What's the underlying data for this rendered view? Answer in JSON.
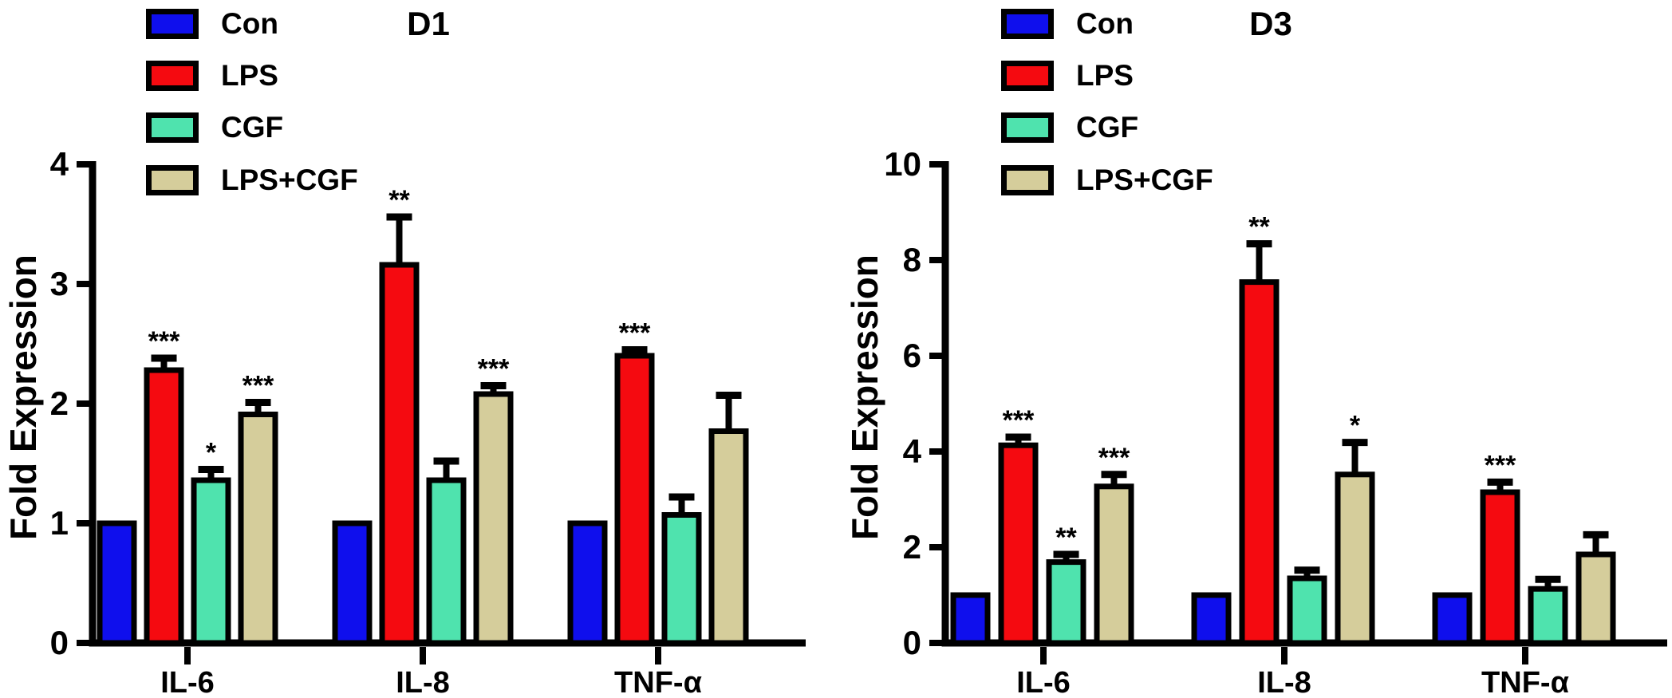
{
  "figure": {
    "background": "#ffffff",
    "axis_color": "#000000"
  },
  "legend": {
    "position": "top-left",
    "items": [
      {
        "label": "Con",
        "color": "#0f0fed"
      },
      {
        "label": "LPS",
        "color": "#f50a10"
      },
      {
        "label": "CGF",
        "color": "#4fe3ae"
      },
      {
        "label": "LPS+CGF",
        "color": "#d5cd9b"
      }
    ]
  },
  "chart_data": [
    {
      "type": "bar",
      "title": "D1",
      "xlabel": "",
      "ylabel": "Fold Expression",
      "ylim": [
        0,
        4
      ],
      "yticks": [
        0,
        1,
        2,
        3,
        4
      ],
      "grid": false,
      "legend_position": "top-left",
      "error_bars": "sd-upper",
      "categories": [
        "IL-6",
        "IL-8",
        "TNF-α"
      ],
      "series": [
        {
          "name": "Con",
          "color": "#0f0fed",
          "values": [
            1.0,
            1.0,
            1.0
          ],
          "errors": [
            0,
            0,
            0
          ],
          "significance": [
            "",
            "",
            ""
          ]
        },
        {
          "name": "LPS",
          "color": "#f50a10",
          "values": [
            2.28,
            3.16,
            2.4
          ],
          "errors": [
            0.1,
            0.4,
            0.05
          ],
          "significance": [
            "***",
            "**",
            "***"
          ]
        },
        {
          "name": "CGF",
          "color": "#4fe3ae",
          "values": [
            1.36,
            1.36,
            1.07
          ],
          "errors": [
            0.09,
            0.16,
            0.15
          ],
          "significance": [
            "*",
            "",
            ""
          ]
        },
        {
          "name": "LPS+CGF",
          "color": "#d5cd9b",
          "values": [
            1.91,
            2.08,
            1.77
          ],
          "errors": [
            0.1,
            0.07,
            0.3
          ],
          "significance": [
            "***",
            "***",
            ""
          ]
        }
      ]
    },
    {
      "type": "bar",
      "title": "D3",
      "xlabel": "",
      "ylabel": "Fold Expression",
      "ylim": [
        0,
        10
      ],
      "yticks": [
        0,
        2,
        4,
        6,
        8,
        10
      ],
      "grid": false,
      "legend_position": "top-left",
      "error_bars": "sd-upper",
      "categories": [
        "IL-6",
        "IL-8",
        "TNF-α"
      ],
      "series": [
        {
          "name": "Con",
          "color": "#0f0fed",
          "values": [
            1.0,
            1.0,
            1.0
          ],
          "errors": [
            0,
            0,
            0
          ],
          "significance": [
            "",
            "",
            ""
          ]
        },
        {
          "name": "LPS",
          "color": "#f50a10",
          "values": [
            4.13,
            7.54,
            3.15
          ],
          "errors": [
            0.17,
            0.8,
            0.21
          ],
          "significance": [
            "***",
            "**",
            "***"
          ]
        },
        {
          "name": "CGF",
          "color": "#4fe3ae",
          "values": [
            1.69,
            1.35,
            1.13
          ],
          "errors": [
            0.16,
            0.17,
            0.2
          ],
          "significance": [
            "**",
            "",
            ""
          ]
        },
        {
          "name": "LPS+CGF",
          "color": "#d5cd9b",
          "values": [
            3.27,
            3.52,
            1.85
          ],
          "errors": [
            0.25,
            0.67,
            0.41
          ],
          "significance": [
            "***",
            "*",
            ""
          ]
        }
      ]
    }
  ]
}
